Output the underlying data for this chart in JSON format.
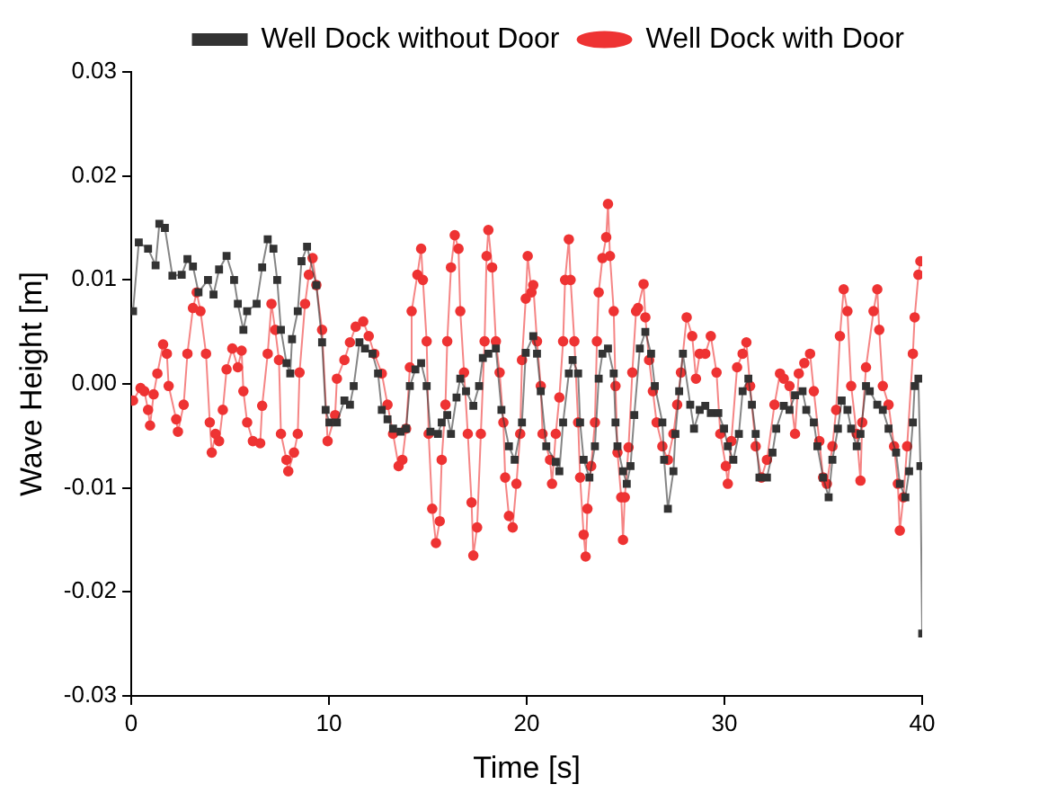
{
  "chart_data": {
    "type": "line",
    "xlabel": "Time [s]",
    "ylabel": "Wave Height [m]",
    "xlim": [
      0,
      40
    ],
    "xticks": [
      0,
      10,
      20,
      30,
      40
    ],
    "ylim": [
      -0.03,
      0.03
    ],
    "yticks": [
      -0.03,
      -0.02,
      -0.01,
      {
        "value": 0,
        "label": "0.00"
      },
      0.01,
      0.02,
      0.03
    ],
    "grid": false,
    "legend": "top right",
    "line_style": "solid",
    "series": [
      {
        "name": "Well Dock without Door",
        "color": "#333333",
        "marker": "square",
        "x": [
          0.09,
          0.38,
          0.85,
          1.23,
          1.42,
          1.7,
          2.08,
          2.55,
          2.84,
          3.12,
          3.4,
          3.88,
          4.16,
          4.44,
          4.82,
          5.2,
          5.39,
          5.67,
          5.86,
          6.34,
          6.62,
          6.9,
          7.19,
          7.38,
          7.57,
          7.85,
          8.04,
          8.13,
          8.42,
          8.61,
          8.89,
          9.36,
          9.65,
          9.83,
          10.02,
          10.4,
          10.78,
          11.06,
          11.25,
          11.54,
          11.82,
          12.2,
          12.48,
          12.67,
          12.96,
          13.24,
          13.62,
          13.9,
          14.09,
          14.37,
          14.66,
          14.94,
          15.13,
          15.51,
          15.7,
          15.98,
          16.17,
          16.45,
          16.64,
          16.93,
          17.3,
          17.59,
          17.78,
          18.06,
          18.44,
          18.72,
          19.1,
          19.39,
          19.76,
          19.95,
          20.33,
          20.52,
          20.71,
          20.99,
          21.47,
          21.65,
          21.84,
          22.13,
          22.32,
          22.6,
          22.7,
          22.88,
          23.17,
          23.45,
          23.64,
          23.83,
          24.11,
          24.4,
          24.49,
          24.59,
          24.87,
          25.06,
          25.25,
          25.44,
          25.72,
          26.0,
          26.29,
          26.48,
          26.86,
          26.95,
          27.14,
          27.42,
          27.52,
          27.71,
          27.9,
          28.27,
          28.46,
          28.75,
          29.03,
          29.31,
          29.69,
          29.98,
          30.17,
          30.45,
          30.73,
          30.92,
          31.21,
          31.39,
          31.58,
          31.77,
          32.15,
          32.43,
          32.62,
          33.0,
          33.29,
          33.57,
          33.95,
          34.14,
          34.52,
          34.7,
          34.99,
          35.27,
          35.46,
          35.74,
          35.93,
          36.22,
          36.41,
          36.69,
          36.88,
          37.16,
          37.35,
          37.73,
          38.01,
          38.3,
          38.68,
          38.87,
          39.15,
          39.34,
          39.53,
          39.62,
          39.81,
          39.91,
          40.0
        ],
        "values": [
          0.007,
          0.0136,
          0.013,
          0.0114,
          0.0154,
          0.015,
          0.0104,
          0.0105,
          0.012,
          0.0113,
          0.0088,
          0.01,
          0.0086,
          0.011,
          0.0123,
          0.01,
          0.0077,
          0.0052,
          0.007,
          0.0077,
          0.0112,
          0.0139,
          0.013,
          0.01,
          0.0052,
          0.002,
          0.001,
          0.0043,
          0.007,
          0.0118,
          0.0132,
          0.0095,
          0.004,
          -0.0025,
          -0.0037,
          -0.0037,
          -0.0016,
          -0.002,
          -0.0002,
          0.004,
          0.0034,
          0.0029,
          0.001,
          -0.0025,
          -0.0034,
          -0.0043,
          -0.0046,
          -0.0043,
          -0.0002,
          0.0014,
          0.002,
          -0.0002,
          -0.0046,
          -0.0048,
          -0.0037,
          -0.003,
          -0.0048,
          -0.0013,
          0.0005,
          -0.0007,
          -0.0021,
          -0.0002,
          0.0025,
          0.0029,
          0.0034,
          -0.0025,
          -0.006,
          -0.0073,
          -0.0037,
          0.003,
          0.0046,
          0.0029,
          -0.0007,
          -0.006,
          -0.0075,
          -0.0084,
          -0.0037,
          0.001,
          0.0023,
          0.001,
          -0.0037,
          -0.0073,
          -0.009,
          -0.006,
          0.0005,
          0.0029,
          0.0034,
          0.001,
          -0.0037,
          -0.006,
          -0.0084,
          -0.0096,
          -0.0079,
          -0.003,
          0.0034,
          0.005,
          0.0029,
          -0.0002,
          -0.0037,
          -0.0073,
          -0.012,
          -0.0084,
          -0.0048,
          -0.0007,
          0.0029,
          -0.002,
          -0.0043,
          -0.0025,
          -0.0021,
          -0.0028,
          -0.0028,
          -0.0043,
          -0.006,
          -0.0073,
          -0.0048,
          -0.0007,
          0.0005,
          -0.002,
          -0.0048,
          -0.009,
          -0.009,
          -0.0066,
          -0.0043,
          -0.0021,
          -0.0025,
          -0.0011,
          -0.0007,
          -0.0025,
          -0.0037,
          -0.006,
          -0.009,
          -0.0109,
          -0.0073,
          -0.0043,
          -0.0016,
          -0.0025,
          -0.0043,
          -0.006,
          -0.0048,
          -0.0002,
          -0.0007,
          -0.002,
          -0.0025,
          -0.0043,
          -0.0066,
          -0.0096,
          -0.0109,
          -0.0084,
          -0.0037,
          -0.0002,
          0.0005,
          -0.0079,
          -0.024
        ]
      },
      {
        "name": "Well Dock with Door",
        "color": "#ee3333",
        "marker": "circle",
        "x": [
          0.09,
          0.47,
          0.66,
          0.85,
          0.95,
          1.13,
          1.32,
          1.61,
          1.8,
          1.89,
          2.27,
          2.36,
          2.65,
          2.84,
          3.12,
          3.31,
          3.5,
          3.78,
          3.97,
          4.07,
          4.26,
          4.44,
          4.63,
          4.82,
          5.11,
          5.39,
          5.58,
          5.67,
          5.86,
          6.15,
          6.52,
          6.62,
          6.9,
          7.09,
          7.28,
          7.47,
          7.57,
          7.85,
          7.94,
          8.23,
          8.42,
          8.51,
          8.79,
          8.98,
          9.17,
          9.36,
          9.65,
          9.93,
          10.31,
          10.4,
          10.78,
          11.06,
          11.35,
          11.73,
          12.01,
          12.29,
          12.67,
          12.96,
          13.24,
          13.52,
          13.71,
          13.9,
          14.09,
          14.18,
          14.47,
          14.66,
          14.75,
          14.94,
          15.04,
          15.22,
          15.41,
          15.6,
          15.7,
          15.89,
          15.98,
          16.17,
          16.36,
          16.55,
          16.64,
          16.83,
          17.02,
          17.21,
          17.3,
          17.49,
          17.68,
          17.87,
          17.97,
          18.06,
          18.25,
          18.44,
          18.63,
          18.82,
          18.91,
          19.1,
          19.29,
          19.48,
          19.67,
          19.76,
          19.95,
          20.05,
          20.24,
          20.33,
          20.52,
          20.71,
          20.8,
          21.18,
          21.28,
          21.47,
          21.65,
          21.84,
          21.94,
          22.13,
          22.22,
          22.41,
          22.6,
          22.7,
          22.88,
          22.98,
          23.07,
          23.26,
          23.45,
          23.55,
          23.64,
          23.83,
          24.02,
          24.11,
          24.21,
          24.4,
          24.49,
          24.59,
          24.78,
          24.87,
          24.96,
          25.15,
          25.34,
          25.53,
          25.63,
          25.91,
          26.0,
          26.19,
          26.38,
          26.57,
          26.86,
          27.14,
          27.42,
          27.61,
          27.8,
          28.09,
          28.37,
          28.56,
          28.75,
          29.03,
          29.31,
          29.6,
          29.79,
          30.07,
          30.17,
          30.35,
          30.64,
          30.92,
          31.11,
          31.3,
          31.58,
          31.87,
          32.15,
          32.53,
          32.81,
          33.0,
          33.29,
          33.57,
          33.76,
          34.04,
          34.33,
          34.52,
          34.8,
          34.99,
          35.18,
          35.46,
          35.65,
          35.84,
          36.03,
          36.22,
          36.41,
          36.69,
          36.88,
          36.97,
          37.16,
          37.54,
          37.73,
          37.83,
          38.01,
          38.3,
          38.58,
          38.77,
          38.87,
          39.05,
          39.24,
          39.53,
          39.62,
          39.81,
          39.91
        ],
        "values": [
          -0.0016,
          -0.0004,
          -0.0007,
          -0.0025,
          -0.004,
          -0.001,
          0.001,
          0.0038,
          0.0029,
          -0.0002,
          -0.0034,
          -0.0046,
          -0.002,
          0.0029,
          0.0073,
          0.0088,
          0.007,
          0.0029,
          -0.0037,
          -0.0066,
          -0.0048,
          -0.0055,
          -0.0025,
          0.0014,
          0.0034,
          0.0016,
          0.0032,
          -0.0007,
          -0.0037,
          -0.0055,
          -0.0057,
          -0.0021,
          0.0029,
          0.0077,
          0.0052,
          0.0023,
          -0.0048,
          -0.0073,
          -0.0084,
          -0.0066,
          -0.0048,
          0.0011,
          0.0077,
          0.0105,
          0.0121,
          0.0095,
          0.0052,
          -0.0055,
          -0.003,
          0.0005,
          0.0023,
          0.004,
          0.0055,
          0.006,
          0.0046,
          0.0029,
          0.001,
          -0.002,
          -0.0048,
          -0.0079,
          -0.0073,
          -0.0043,
          0.0016,
          0.007,
          0.0105,
          0.013,
          0.01,
          0.0041,
          -0.0048,
          -0.012,
          -0.0153,
          -0.0132,
          -0.0073,
          -0.002,
          0.0041,
          0.0112,
          0.0143,
          0.013,
          0.007,
          0.0011,
          -0.0048,
          -0.0114,
          -0.0165,
          -0.0138,
          -0.0048,
          0.0041,
          0.0123,
          0.0148,
          0.0112,
          0.0041,
          0.0011,
          -0.0037,
          -0.009,
          -0.0127,
          -0.0138,
          -0.0096,
          -0.0048,
          0.0023,
          0.0082,
          0.0123,
          0.0088,
          0.0095,
          0.0041,
          -0.0002,
          -0.0048,
          -0.0073,
          -0.0096,
          -0.0048,
          -0.0013,
          0.0041,
          0.01,
          0.0139,
          0.01,
          0.0041,
          -0.0037,
          -0.009,
          -0.0145,
          -0.0166,
          -0.012,
          -0.0079,
          -0.0037,
          0.0041,
          0.0088,
          0.0121,
          0.0141,
          0.0173,
          0.0123,
          0.007,
          -0.0002,
          -0.0066,
          -0.0109,
          -0.015,
          -0.0109,
          -0.0061,
          0.0011,
          0.007,
          0.0073,
          0.0096,
          0.0064,
          0.0023,
          -0.0007,
          -0.0037,
          -0.006,
          -0.0073,
          -0.0048,
          -0.002,
          0.0011,
          0.0064,
          0.0046,
          0.0005,
          0.0029,
          0.0029,
          0.0046,
          0.0011,
          -0.0048,
          -0.0079,
          -0.0096,
          -0.0055,
          0.0016,
          0.0029,
          0.004,
          -0.0002,
          -0.006,
          -0.009,
          -0.0073,
          -0.002,
          0.001,
          0.0005,
          -0.0002,
          -0.0048,
          0.001,
          0.002,
          0.0029,
          -0.0007,
          -0.0055,
          -0.009,
          -0.0096,
          -0.006,
          -0.0025,
          0.0046,
          0.0091,
          0.007,
          -0.0002,
          -0.0048,
          -0.0093,
          -0.0037,
          0.0016,
          0.007,
          0.0091,
          0.0052,
          -0.0002,
          -0.002,
          -0.006,
          -0.0096,
          -0.0141,
          -0.0109,
          -0.006,
          0.0029,
          0.0064,
          0.0105,
          0.0118
        ]
      }
    ]
  }
}
